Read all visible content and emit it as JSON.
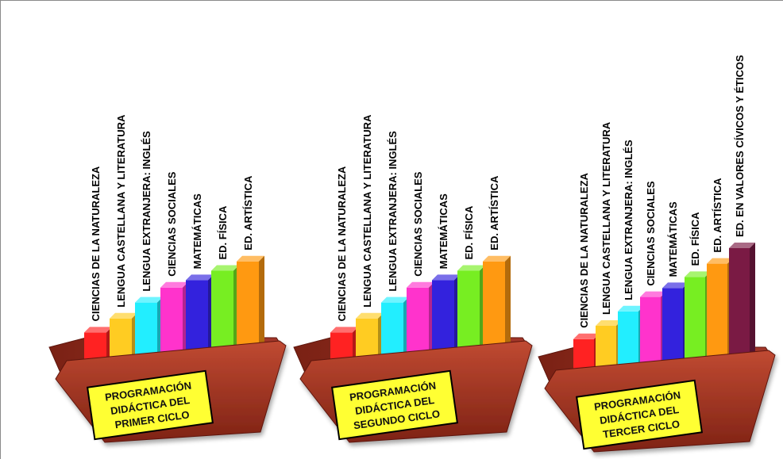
{
  "colors": {
    "folder_back": "#8e2a1c",
    "folder_front": "#a83a26",
    "folder_edge": "#5e160d",
    "label_fill": "#ffff33",
    "label_stroke": "#000000"
  },
  "cycles": [
    {
      "label_lines": [
        "PROGRAMACIÓN",
        "DIDÁCTICA DEL",
        "PRIMER CICLO"
      ],
      "subjects": [
        {
          "name": "CIENCIAS DE LA NATURALEZA",
          "level": 0.2,
          "color": "#ff2222"
        },
        {
          "name": "LENGUA CASTELLANA Y LITERATURA",
          "level": 0.35,
          "color": "#ffcc22"
        },
        {
          "name": "LENGUA EXTRANJERA: INGLÉS",
          "level": 0.52,
          "color": "#22eeff"
        },
        {
          "name": "CIENCIAS SOCIALES",
          "level": 0.68,
          "color": "#ff33cc"
        },
        {
          "name": "MATEMÁTICAS",
          "level": 0.76,
          "color": "#3322dd"
        },
        {
          "name": "ED. FÍSICA",
          "level": 0.86,
          "color": "#77ee22"
        },
        {
          "name": "ED. ARTÍSTICA",
          "level": 0.96,
          "color": "#ff9911"
        }
      ]
    },
    {
      "label_lines": [
        "PROGRAMACIÓN",
        "DIDÁCTICA DEL",
        "SEGUNDO CICLO"
      ],
      "subjects": [
        {
          "name": "CIENCIAS DE LA NATURALEZA",
          "level": 0.2,
          "color": "#ff2222"
        },
        {
          "name": "LENGUA CASTELLANA Y LITERATURA",
          "level": 0.35,
          "color": "#ffcc22"
        },
        {
          "name": "LENGUA EXTRANJERA: INGLÉS",
          "level": 0.52,
          "color": "#22eeff"
        },
        {
          "name": "CIENCIAS SOCIALES",
          "level": 0.68,
          "color": "#ff33cc"
        },
        {
          "name": "MATEMÁTICAS",
          "level": 0.76,
          "color": "#3322dd"
        },
        {
          "name": "ED. FÍSICA",
          "level": 0.86,
          "color": "#77ee22"
        },
        {
          "name": "ED. ARTÍSTICA",
          "level": 0.96,
          "color": "#ff9911"
        }
      ]
    },
    {
      "label_lines": [
        "PROGRAMACIÓN",
        "DIDÁCTICA DEL",
        "TERCER CICLO"
      ],
      "subjects": [
        {
          "name": "CIENCIAS DE LA NATURALEZA",
          "level": 0.18,
          "color": "#ff2222"
        },
        {
          "name": "LENGUA CASTELLANA Y LITERATURA",
          "level": 0.3,
          "color": "#ffcc22"
        },
        {
          "name": "LENGUA EXTRANJERA: INGLÉS",
          "level": 0.43,
          "color": "#22eeff"
        },
        {
          "name": "CIENCIAS SOCIALES",
          "level": 0.56,
          "color": "#ff33cc"
        },
        {
          "name": "MATEMÁTICAS",
          "level": 0.64,
          "color": "#3322dd"
        },
        {
          "name": "ED. FÍSICA",
          "level": 0.74,
          "color": "#77ee22"
        },
        {
          "name": "ED. ARTÍSTICA",
          "level": 0.86,
          "color": "#ff9911"
        },
        {
          "name": "ED.  EN VALORES CÍVICOS Y ÉTICOS",
          "level": 1.0,
          "color": "#7a1a44"
        }
      ]
    }
  ]
}
